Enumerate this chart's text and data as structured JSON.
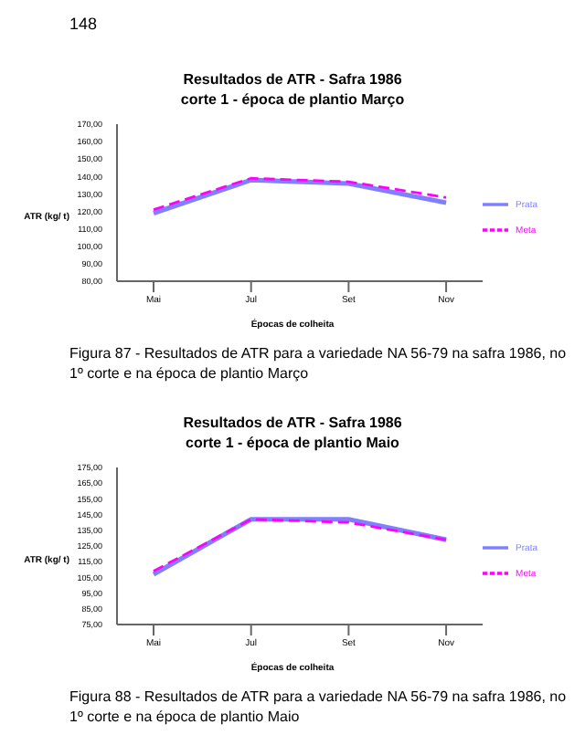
{
  "chart_data": [
    {
      "type": "line",
      "title": "Resultados de ATR - Safra 1986",
      "subtitle": "corte 1 - época de plantio Março",
      "xlabel": "Épocas de colheita",
      "ylabel": "ATR (kg/ t)",
      "categories": [
        "Mai",
        "Jul",
        "Set",
        "Nov"
      ],
      "series": [
        {
          "name": "Prata",
          "color": "#8080ff",
          "line_style": "solid",
          "values": [
            119,
            138,
            136,
            125
          ]
        },
        {
          "name": "Meta",
          "color": "#ff00ff",
          "line_style": "dashed",
          "values": [
            121,
            139,
            137,
            128
          ]
        }
      ],
      "ylim": [
        80,
        170
      ],
      "yticks": [
        {
          "value": 80,
          "label": "80,00"
        },
        {
          "value": 90,
          "label": "90,00"
        },
        {
          "value": 100,
          "label": "100,00"
        },
        {
          "value": 110,
          "label": "110,00"
        },
        {
          "value": 120,
          "label": "120,00"
        },
        {
          "value": 130,
          "label": "130,00"
        },
        {
          "value": 140,
          "label": "140,00"
        },
        {
          "value": 150,
          "label": "150,00"
        },
        {
          "value": 160,
          "label": "160,00"
        },
        {
          "value": 170,
          "label": "170,00"
        }
      ],
      "legend": "right",
      "marker": "none",
      "grid": false,
      "annotations": [
        "148",
        "Figura 87 - Resultados de ATR para a variedade NA 56-79 na safra 1986, no 1º corte e na época de plantio Março"
      ]
    },
    {
      "type": "line",
      "title": "Resultados de ATR - Safra 1986",
      "subtitle": "corte 1 - época de plantio Maio",
      "xlabel": "Épocas de colheita",
      "ylabel": "ATR (kg/ t)",
      "categories": [
        "Mai",
        "Jul",
        "Set",
        "Nov"
      ],
      "series": [
        {
          "name": "Prata",
          "color": "#8080ff",
          "line_style": "solid",
          "values": [
            107,
            142,
            142,
            129
          ]
        },
        {
          "name": "Meta",
          "color": "#ff00ff",
          "line_style": "dashed",
          "values": [
            109,
            142,
            140,
            129
          ]
        }
      ],
      "ylim": [
        75,
        175
      ],
      "yticks": [
        {
          "value": 75,
          "label": "75,00"
        },
        {
          "value": 85,
          "label": "85,00"
        },
        {
          "value": 95,
          "label": "95,00"
        },
        {
          "value": 105,
          "label": "105,00"
        },
        {
          "value": 115,
          "label": "115,00"
        },
        {
          "value": 125,
          "label": "125,00"
        },
        {
          "value": 135,
          "label": "135,00"
        },
        {
          "value": 145,
          "label": "145,00"
        },
        {
          "value": 155,
          "label": "155,00"
        },
        {
          "value": 165,
          "label": "165,00"
        },
        {
          "value": 175,
          "label": "175,00"
        }
      ],
      "legend": "right",
      "marker": "none",
      "grid": false,
      "annotations": [
        "Figura 88 - Resultados de ATR para a variedade NA 56-79 na safra 1986, no 1º corte e na época de plantio Maio"
      ]
    }
  ]
}
